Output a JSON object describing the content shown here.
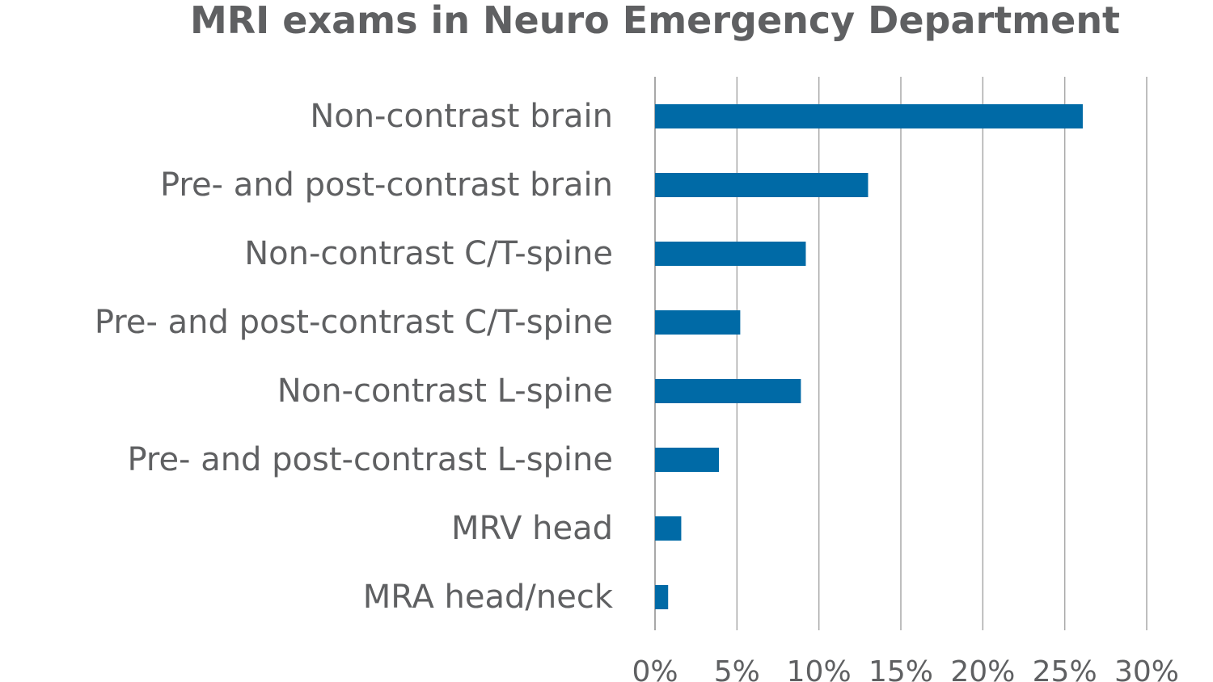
{
  "chart_data": {
    "type": "bar",
    "orientation": "horizontal",
    "title": "MRI exams in Neuro Emergency Department",
    "xlabel": "",
    "ylabel": "",
    "categories": [
      "Non-contrast brain",
      "Pre- and post-contrast brain",
      "Non-contrast C/T-spine",
      "Pre- and post-contrast C/T-spine",
      "Non-contrast L-spine",
      "Pre- and post-contrast L-spine",
      "MRV head",
      "MRA head/neck"
    ],
    "values": [
      26.1,
      13,
      9.2,
      5.2,
      8.9,
      3.9,
      1.6,
      0.8
    ],
    "xlim": [
      0,
      30
    ],
    "x_ticks": [
      0,
      5,
      10,
      15,
      20,
      25,
      30
    ],
    "x_tick_labels": [
      "0%",
      "5%",
      "10%",
      "15%",
      "20%",
      "25%",
      "30%"
    ],
    "grid": "vertical",
    "legend": "none",
    "bar_color": "#006aa6"
  }
}
